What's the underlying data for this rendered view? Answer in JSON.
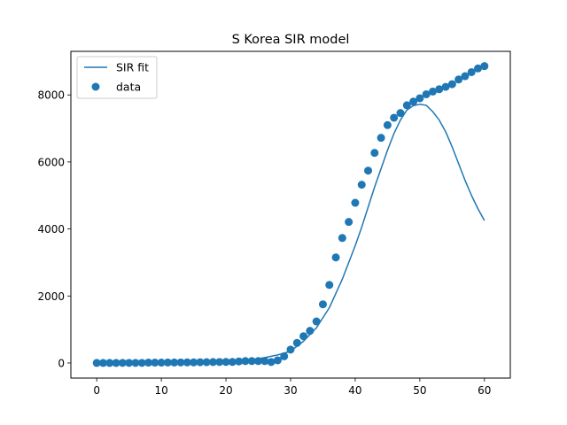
{
  "chart_data": {
    "type": "line",
    "title": "S Korea SIR model",
    "xlabel": "",
    "ylabel": "",
    "xlim": [
      -4,
      64
    ],
    "ylim": [
      -450,
      9300
    ],
    "xticks": [
      0,
      10,
      20,
      30,
      40,
      50,
      60
    ],
    "yticks": [
      0,
      2000,
      4000,
      6000,
      8000
    ],
    "grid": false,
    "legend_placement": "top-left",
    "colors": {
      "series": "#1f77b4",
      "axes": "#000000"
    },
    "series": [
      {
        "name": "SIR fit",
        "kind": "line",
        "x": [
          0,
          5,
          10,
          15,
          20,
          22,
          24,
          26,
          28,
          30,
          32,
          34,
          36,
          38,
          40,
          41,
          42,
          43,
          44,
          45,
          46,
          47,
          48,
          49,
          50,
          51,
          52,
          53,
          54,
          55,
          56,
          57,
          58,
          59,
          60
        ],
        "y": [
          0,
          0,
          2,
          6,
          25,
          55,
          95,
          160,
          240,
          350,
          650,
          1050,
          1650,
          2500,
          3500,
          4050,
          4650,
          5250,
          5800,
          6350,
          6850,
          7250,
          7550,
          7680,
          7720,
          7690,
          7500,
          7250,
          6900,
          6450,
          5950,
          5450,
          5000,
          4600,
          4250
        ]
      },
      {
        "name": "data",
        "kind": "scatter",
        "x": [
          0,
          1,
          2,
          3,
          4,
          5,
          6,
          7,
          8,
          9,
          10,
          11,
          12,
          13,
          14,
          15,
          16,
          17,
          18,
          19,
          20,
          21,
          22,
          23,
          24,
          25,
          26,
          27,
          28,
          29,
          30,
          31,
          32,
          33,
          34,
          35,
          36,
          37,
          38,
          39,
          40,
          41,
          42,
          43,
          44,
          45,
          46,
          47,
          48,
          49,
          50,
          51,
          52,
          53,
          54,
          55,
          56,
          57,
          58,
          59,
          60
        ],
        "y": [
          1,
          1,
          2,
          2,
          3,
          4,
          4,
          4,
          11,
          11,
          12,
          15,
          15,
          16,
          18,
          18,
          23,
          24,
          28,
          30,
          31,
          31,
          46,
          58,
          58,
          58,
          58,
          30,
          80,
          200,
          400,
          600,
          800,
          960,
          1240,
          1750,
          2330,
          3150,
          3730,
          4210,
          4780,
          5320,
          5740,
          6270,
          6720,
          7100,
          7320,
          7460,
          7690,
          7800,
          7900,
          8020,
          8100,
          8170,
          8240,
          8320,
          8460,
          8560,
          8680,
          8790,
          8860
        ]
      }
    ]
  }
}
